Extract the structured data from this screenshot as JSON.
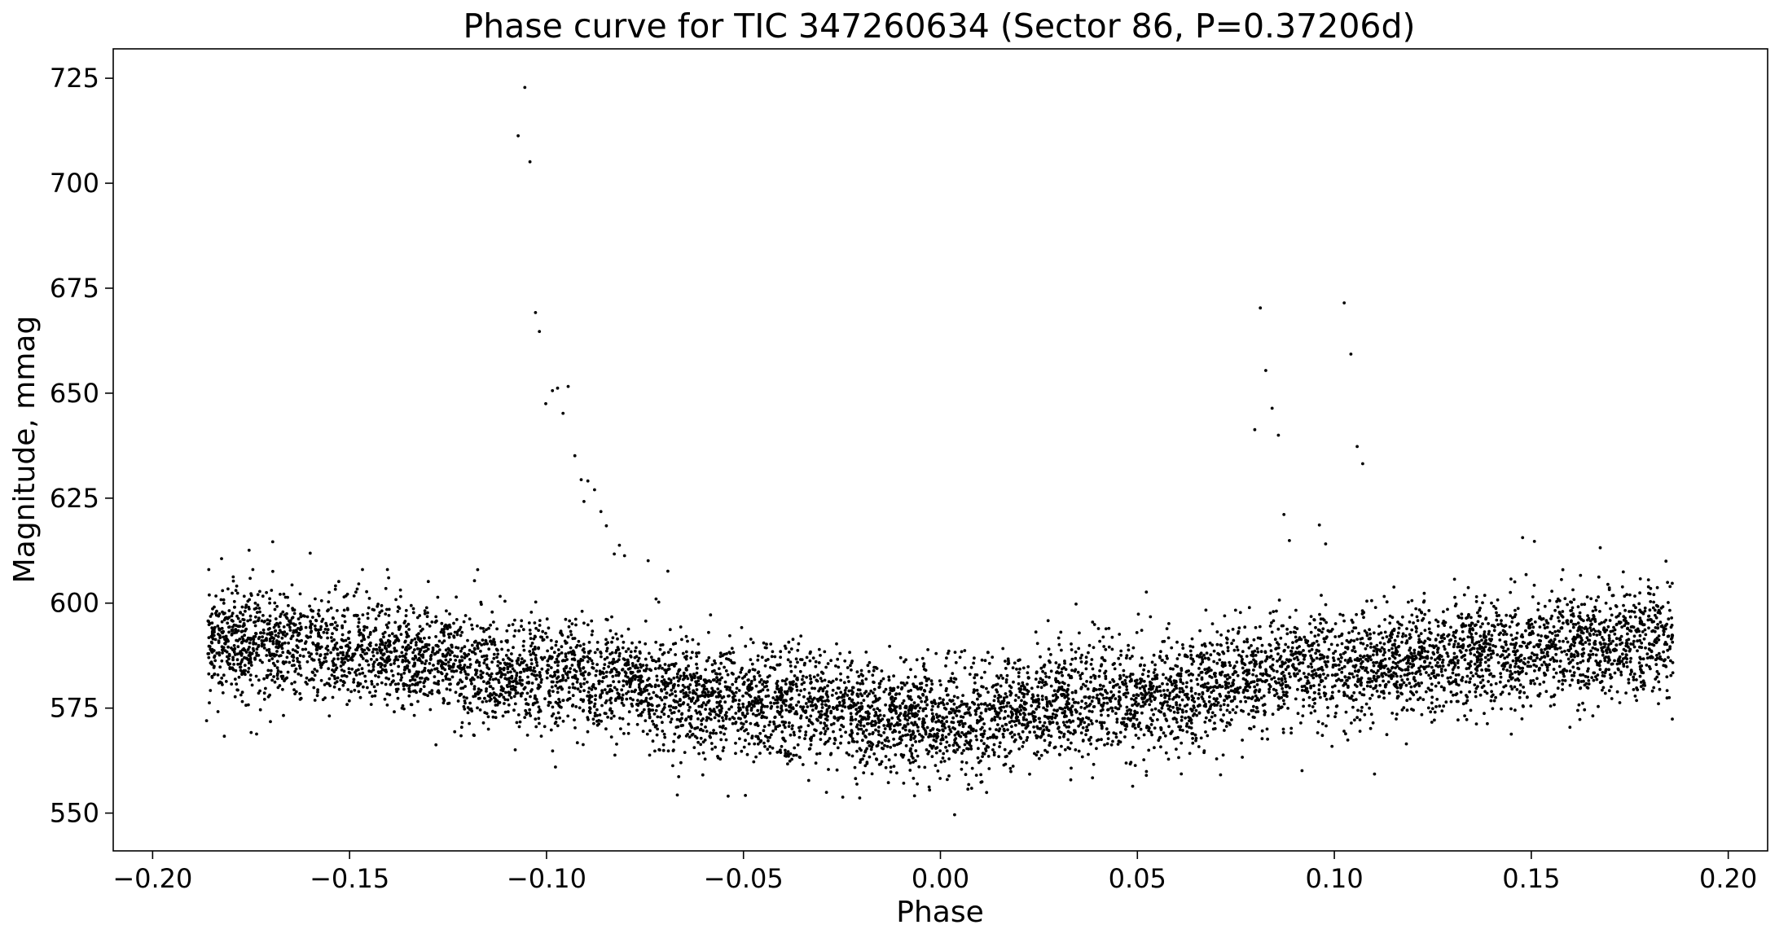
{
  "chart_data": {
    "type": "scatter",
    "title": "Phase curve for TIC 347260634 (Sector 86, P=0.37206d)",
    "xlabel": "Phase",
    "ylabel": "Magnitude, mmag",
    "xlim": [
      -0.21,
      0.21
    ],
    "ylim": [
      541,
      732
    ],
    "xticks": [
      -0.2,
      -0.15,
      -0.1,
      -0.05,
      0.0,
      0.05,
      0.1,
      0.15,
      0.2
    ],
    "xtick_labels": [
      "−0.20",
      "−0.15",
      "−0.10",
      "−0.05",
      "0.00",
      "0.05",
      "0.10",
      "0.15",
      "0.20"
    ],
    "yticks": [
      550,
      575,
      600,
      625,
      650,
      675,
      700,
      725
    ],
    "ytick_labels": [
      "550",
      "575",
      "600",
      "625",
      "650",
      "675",
      "700",
      "725"
    ],
    "grid": false,
    "marker_color": "#000000",
    "baseline_model": {
      "x_nodes": [
        -0.186,
        -0.15,
        -0.1,
        -0.05,
        0.0,
        0.05,
        0.1,
        0.15,
        0.186
      ],
      "y_nodes": [
        591,
        589,
        583,
        576,
        572,
        578,
        585,
        589,
        591
      ],
      "scatter_sd_mmag": 6.5,
      "points_per_unit_phase": 21000
    },
    "points": [
      {
        "x": -0.1055,
        "y": 722.8
      },
      {
        "x": -0.1072,
        "y": 711.3
      },
      {
        "x": -0.1042,
        "y": 705.1
      },
      {
        "x": -0.1028,
        "y": 669.2
      },
      {
        "x": -0.1018,
        "y": 664.7
      },
      {
        "x": -0.1002,
        "y": 647.5
      },
      {
        "x": -0.0985,
        "y": 650.6
      },
      {
        "x": -0.0972,
        "y": 651.2
      },
      {
        "x": -0.0958,
        "y": 645.2
      },
      {
        "x": -0.0945,
        "y": 651.6
      },
      {
        "x": -0.0928,
        "y": 635.1
      },
      {
        "x": -0.0912,
        "y": 629.4
      },
      {
        "x": -0.0895,
        "y": 629.1
      },
      {
        "x": -0.0905,
        "y": 624.2
      },
      {
        "x": -0.0878,
        "y": 627.0
      },
      {
        "x": -0.0862,
        "y": 621.8
      },
      {
        "x": -0.0848,
        "y": 618.4
      },
      {
        "x": -0.0828,
        "y": 611.7
      },
      {
        "x": -0.0815,
        "y": 613.8
      },
      {
        "x": -0.0802,
        "y": 611.3
      },
      {
        "x": -0.0742,
        "y": 610.1
      },
      {
        "x": -0.0722,
        "y": 601.0
      },
      {
        "x": -0.0692,
        "y": 607.6
      },
      {
        "x": 0.0798,
        "y": 641.3
      },
      {
        "x": 0.0812,
        "y": 670.3
      },
      {
        "x": 0.0826,
        "y": 655.4
      },
      {
        "x": 0.0842,
        "y": 646.4
      },
      {
        "x": 0.0858,
        "y": 640.0
      },
      {
        "x": 0.0872,
        "y": 621.1
      },
      {
        "x": 0.0886,
        "y": 614.9
      },
      {
        "x": 0.0962,
        "y": 618.6
      },
      {
        "x": 0.0978,
        "y": 614.1
      },
      {
        "x": 0.1025,
        "y": 671.5
      },
      {
        "x": 0.1042,
        "y": 659.3
      },
      {
        "x": 0.1058,
        "y": 637.3
      },
      {
        "x": 0.1072,
        "y": 633.2
      },
      {
        "x": 0.0036,
        "y": 549.6
      },
      {
        "x": -0.0212,
        "y": 556.9
      },
      {
        "x": -0.0248,
        "y": 553.8
      },
      {
        "x": -0.0495,
        "y": 554.2
      },
      {
        "x": -0.0668,
        "y": 554.3
      },
      {
        "x": -0.0205,
        "y": 553.6
      },
      {
        "x": -0.1863,
        "y": 572.0
      },
      {
        "x": -0.1825,
        "y": 610.6
      },
      {
        "x": -0.1755,
        "y": 612.6
      },
      {
        "x": -0.1695,
        "y": 614.6
      },
      {
        "x": -0.16,
        "y": 611.9
      },
      {
        "x": -0.175,
        "y": 569.2
      },
      {
        "x": 0.1478,
        "y": 615.6
      },
      {
        "x": 0.1508,
        "y": 614.7
      },
      {
        "x": 0.1675,
        "y": 613.2
      },
      {
        "x": 0.1858,
        "y": 572.4
      },
      {
        "x": 0.1842,
        "y": 610.0
      },
      {
        "x": 0.1102,
        "y": 559.3
      },
      {
        "x": 0.0918,
        "y": 560.1
      },
      {
        "x": 0.0488,
        "y": 556.4
      }
    ]
  }
}
